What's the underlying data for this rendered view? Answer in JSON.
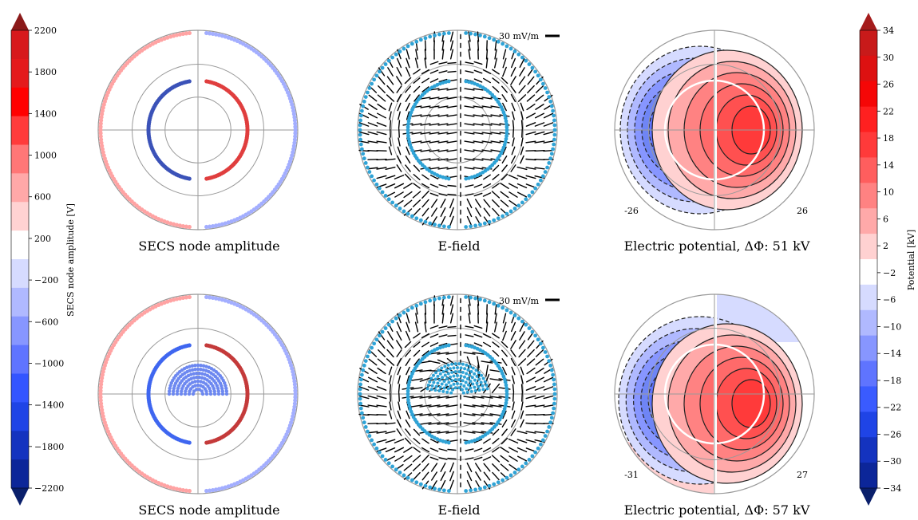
{
  "figure": {
    "left_colorbar": {
      "label": "SECS node amplitude [V]",
      "ticks": [
        "2200",
        "1800",
        "1400",
        "1000",
        "600",
        "200",
        "−200",
        "−600",
        "−1000",
        "−1400",
        "−1800",
        "−2200"
      ],
      "colors": [
        "#d7191c",
        "#e41a1c",
        "#ff0000",
        "#ff3b3b",
        "#ff7777",
        "#ffa8a8",
        "#ffd2d2",
        "#ffffff",
        "#d6dbff",
        "#b0b9ff",
        "#8796ff",
        "#5f74ff",
        "#3355ff",
        "#1f44e6",
        "#1433bf",
        "#0c2699"
      ],
      "extend_top": "#8b1a1a",
      "extend_bottom": "#0a1f6b"
    },
    "right_colorbar": {
      "label": "Potential [kV]",
      "ticks": [
        "34",
        "30",
        "26",
        "22",
        "18",
        "14",
        "10",
        "6",
        "2",
        "−2",
        "−6",
        "−10",
        "−14",
        "−18",
        "−22",
        "−26",
        "−30",
        "−34"
      ],
      "colors": [
        "#c81a1a",
        "#dd1111",
        "#f50707",
        "#ff2020",
        "#ff3a3a",
        "#ff5e5e",
        "#ff8282",
        "#ffa9a9",
        "#ffd1d1",
        "#ffffff",
        "#d6dbff",
        "#b0b9ff",
        "#8796ff",
        "#5f74ff",
        "#3a5bff",
        "#1f44e6",
        "#1433bf",
        "#0c2699"
      ],
      "extend_top": "#a51c1c",
      "extend_bottom": "#0a1f6b"
    },
    "rows": [
      {
        "secs_title": "SECS node amplitude",
        "efield_title": "E-field",
        "efield_scale_label": "30 mV/m",
        "potential_title": "Electric potential, ΔΦ: 51 kV",
        "min_label": "-26",
        "max_label": "26"
      },
      {
        "secs_title": "SECS node amplitude",
        "efield_title": "E-field",
        "efield_scale_label": "30 mV/m",
        "potential_title": "Electric potential, ΔΦ: 57 kV",
        "min_label": "-31",
        "max_label": "27"
      }
    ]
  },
  "chart_data": [
    {
      "type": "heatmap",
      "panel": "SECS node amplitude (top)",
      "colorbar_range": [
        -2200,
        2200
      ],
      "node_rings": [
        {
          "ring": "outer",
          "side": "dawn",
          "amplitude": 400
        },
        {
          "ring": "outer",
          "side": "dusk",
          "amplitude": -400
        },
        {
          "ring": "inner",
          "side": "dawn",
          "amplitude": -1900
        },
        {
          "ring": "inner",
          "side": "dusk",
          "amplitude": 1700
        }
      ]
    },
    {
      "type": "heatmap",
      "panel": "SECS node amplitude (bottom)",
      "colorbar_range": [
        -2200,
        2200
      ],
      "node_rings": [
        {
          "ring": "outer",
          "side": "dawn",
          "amplitude": 400
        },
        {
          "ring": "outer",
          "side": "dusk",
          "amplitude": -400
        },
        {
          "ring": "inner",
          "side": "dawn",
          "amplitude": -1300
        },
        {
          "ring": "inner",
          "side": "dusk",
          "amplitude": 1900
        },
        {
          "ring": "polar cap fill",
          "side": "noon",
          "amplitude": -1100
        }
      ]
    },
    {
      "type": "scatter",
      "panel": "Electric potential (top)",
      "unit": "kV",
      "min": -26,
      "max": 26,
      "cross_polar_cap_potential": 51
    },
    {
      "type": "scatter",
      "panel": "Electric potential (bottom)",
      "unit": "kV",
      "min": -31,
      "max": 27,
      "cross_polar_cap_potential": 57
    }
  ]
}
